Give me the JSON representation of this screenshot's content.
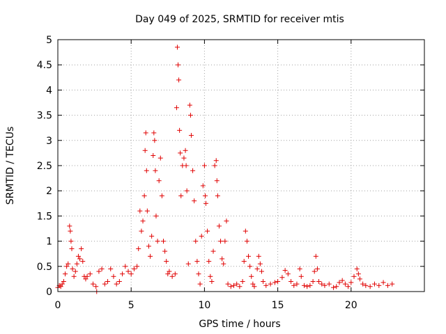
{
  "chart_data": {
    "type": "scatter",
    "title": "Day 049 of 2025, SRMTID for receiver mtis",
    "xlabel": "GPS time / hours",
    "ylabel": "SRMTID / TECUs",
    "xlim": [
      0,
      25
    ],
    "ylim": [
      0,
      5
    ],
    "xticks": [
      0,
      5,
      10,
      15,
      20
    ],
    "yticks": [
      0,
      0.5,
      1,
      1.5,
      2,
      2.5,
      3,
      3.5,
      4,
      4.5,
      5
    ],
    "xtick_labels": [
      "0",
      "5",
      "10",
      "15",
      "20"
    ],
    "ytick_labels": [
      "0",
      "0.5",
      "1",
      "1.5",
      "2",
      "2.5",
      "3",
      "3.5",
      "4",
      "4.5",
      "5"
    ],
    "grid": true,
    "marker": "+",
    "color": "#e00000",
    "series": [
      {
        "name": "SRMTID",
        "points": [
          [
            0.0,
            0.08
          ],
          [
            0.1,
            0.12
          ],
          [
            0.2,
            0.1
          ],
          [
            0.3,
            0.15
          ],
          [
            0.4,
            0.2
          ],
          [
            0.5,
            0.35
          ],
          [
            0.6,
            0.5
          ],
          [
            0.7,
            0.55
          ],
          [
            0.8,
            1.3
          ],
          [
            0.85,
            1.2
          ],
          [
            0.9,
            1.0
          ],
          [
            0.95,
            0.85
          ],
          [
            1.0,
            0.45
          ],
          [
            1.1,
            0.3
          ],
          [
            1.2,
            0.4
          ],
          [
            1.3,
            0.55
          ],
          [
            1.4,
            0.7
          ],
          [
            1.5,
            0.65
          ],
          [
            1.6,
            0.85
          ],
          [
            1.7,
            0.6
          ],
          [
            1.8,
            0.3
          ],
          [
            1.9,
            0.25
          ],
          [
            2.0,
            0.3
          ],
          [
            2.2,
            0.35
          ],
          [
            2.4,
            0.15
          ],
          [
            2.6,
            0.1
          ],
          [
            2.65,
            0.0
          ],
          [
            2.8,
            0.4
          ],
          [
            3.0,
            0.45
          ],
          [
            3.2,
            0.15
          ],
          [
            3.4,
            0.2
          ],
          [
            3.6,
            0.45
          ],
          [
            3.8,
            0.3
          ],
          [
            4.0,
            0.15
          ],
          [
            4.2,
            0.2
          ],
          [
            4.4,
            0.35
          ],
          [
            4.6,
            0.5
          ],
          [
            4.8,
            0.4
          ],
          [
            5.0,
            0.35
          ],
          [
            5.2,
            0.45
          ],
          [
            5.4,
            0.5
          ],
          [
            5.5,
            0.85
          ],
          [
            5.6,
            1.6
          ],
          [
            5.7,
            1.2
          ],
          [
            5.8,
            1.4
          ],
          [
            5.9,
            1.9
          ],
          [
            5.95,
            2.8
          ],
          [
            6.0,
            3.15
          ],
          [
            6.05,
            2.4
          ],
          [
            6.1,
            1.6
          ],
          [
            6.2,
            0.9
          ],
          [
            6.3,
            0.7
          ],
          [
            6.4,
            1.1
          ],
          [
            6.5,
            2.7
          ],
          [
            6.55,
            3.15
          ],
          [
            6.6,
            3.0
          ],
          [
            6.65,
            2.4
          ],
          [
            6.7,
            1.5
          ],
          [
            6.8,
            1.0
          ],
          [
            6.9,
            2.2
          ],
          [
            7.0,
            2.65
          ],
          [
            7.1,
            1.9
          ],
          [
            7.2,
            1.0
          ],
          [
            7.3,
            0.8
          ],
          [
            7.4,
            0.6
          ],
          [
            7.5,
            0.35
          ],
          [
            7.6,
            0.4
          ],
          [
            7.8,
            0.3
          ],
          [
            8.0,
            0.35
          ],
          [
            8.1,
            3.65
          ],
          [
            8.15,
            4.85
          ],
          [
            8.2,
            4.5
          ],
          [
            8.25,
            4.2
          ],
          [
            8.3,
            3.2
          ],
          [
            8.35,
            2.75
          ],
          [
            8.4,
            1.9
          ],
          [
            8.5,
            2.5
          ],
          [
            8.6,
            2.65
          ],
          [
            8.7,
            2.8
          ],
          [
            8.75,
            2.5
          ],
          [
            8.8,
            2.0
          ],
          [
            8.9,
            0.55
          ],
          [
            9.0,
            3.7
          ],
          [
            9.05,
            3.5
          ],
          [
            9.1,
            3.1
          ],
          [
            9.2,
            2.4
          ],
          [
            9.3,
            1.8
          ],
          [
            9.4,
            1.0
          ],
          [
            9.5,
            0.6
          ],
          [
            9.6,
            0.35
          ],
          [
            9.7,
            0.15
          ],
          [
            9.8,
            1.1
          ],
          [
            9.9,
            2.1
          ],
          [
            10.0,
            2.5
          ],
          [
            10.05,
            1.9
          ],
          [
            10.1,
            1.75
          ],
          [
            10.2,
            1.2
          ],
          [
            10.3,
            0.6
          ],
          [
            10.4,
            0.3
          ],
          [
            10.5,
            0.2
          ],
          [
            10.6,
            0.8
          ],
          [
            10.7,
            2.5
          ],
          [
            10.8,
            2.6
          ],
          [
            10.85,
            2.2
          ],
          [
            10.9,
            1.9
          ],
          [
            11.0,
            1.3
          ],
          [
            11.1,
            1.0
          ],
          [
            11.2,
            0.65
          ],
          [
            11.3,
            0.55
          ],
          [
            11.4,
            1.0
          ],
          [
            11.5,
            1.4
          ],
          [
            11.6,
            0.15
          ],
          [
            11.8,
            0.1
          ],
          [
            12.0,
            0.12
          ],
          [
            12.2,
            0.15
          ],
          [
            12.4,
            0.1
          ],
          [
            12.6,
            0.2
          ],
          [
            12.7,
            0.6
          ],
          [
            12.8,
            1.2
          ],
          [
            12.9,
            1.0
          ],
          [
            13.0,
            0.7
          ],
          [
            13.1,
            0.5
          ],
          [
            13.2,
            0.3
          ],
          [
            13.3,
            0.15
          ],
          [
            13.4,
            0.1
          ],
          [
            13.6,
            0.45
          ],
          [
            13.7,
            0.7
          ],
          [
            13.8,
            0.55
          ],
          [
            13.9,
            0.4
          ],
          [
            14.0,
            0.2
          ],
          [
            14.2,
            0.12
          ],
          [
            14.5,
            0.15
          ],
          [
            14.8,
            0.18
          ],
          [
            15.0,
            0.2
          ],
          [
            15.3,
            0.28
          ],
          [
            15.5,
            0.42
          ],
          [
            15.7,
            0.35
          ],
          [
            15.9,
            0.2
          ],
          [
            16.1,
            0.12
          ],
          [
            16.3,
            0.15
          ],
          [
            16.5,
            0.45
          ],
          [
            16.6,
            0.3
          ],
          [
            16.8,
            0.12
          ],
          [
            17.0,
            0.1
          ],
          [
            17.2,
            0.12
          ],
          [
            17.4,
            0.2
          ],
          [
            17.5,
            0.4
          ],
          [
            17.6,
            0.7
          ],
          [
            17.7,
            0.45
          ],
          [
            17.8,
            0.2
          ],
          [
            18.0,
            0.15
          ],
          [
            18.2,
            0.12
          ],
          [
            18.5,
            0.15
          ],
          [
            18.8,
            0.08
          ],
          [
            19.0,
            0.1
          ],
          [
            19.2,
            0.18
          ],
          [
            19.4,
            0.22
          ],
          [
            19.6,
            0.15
          ],
          [
            19.8,
            0.1
          ],
          [
            20.0,
            0.18
          ],
          [
            20.2,
            0.3
          ],
          [
            20.4,
            0.45
          ],
          [
            20.5,
            0.35
          ],
          [
            20.6,
            0.25
          ],
          [
            20.8,
            0.15
          ],
          [
            21.0,
            0.12
          ],
          [
            21.3,
            0.1
          ],
          [
            21.6,
            0.15
          ],
          [
            21.9,
            0.12
          ],
          [
            22.2,
            0.18
          ],
          [
            22.5,
            0.12
          ],
          [
            22.8,
            0.15
          ]
        ]
      }
    ]
  }
}
